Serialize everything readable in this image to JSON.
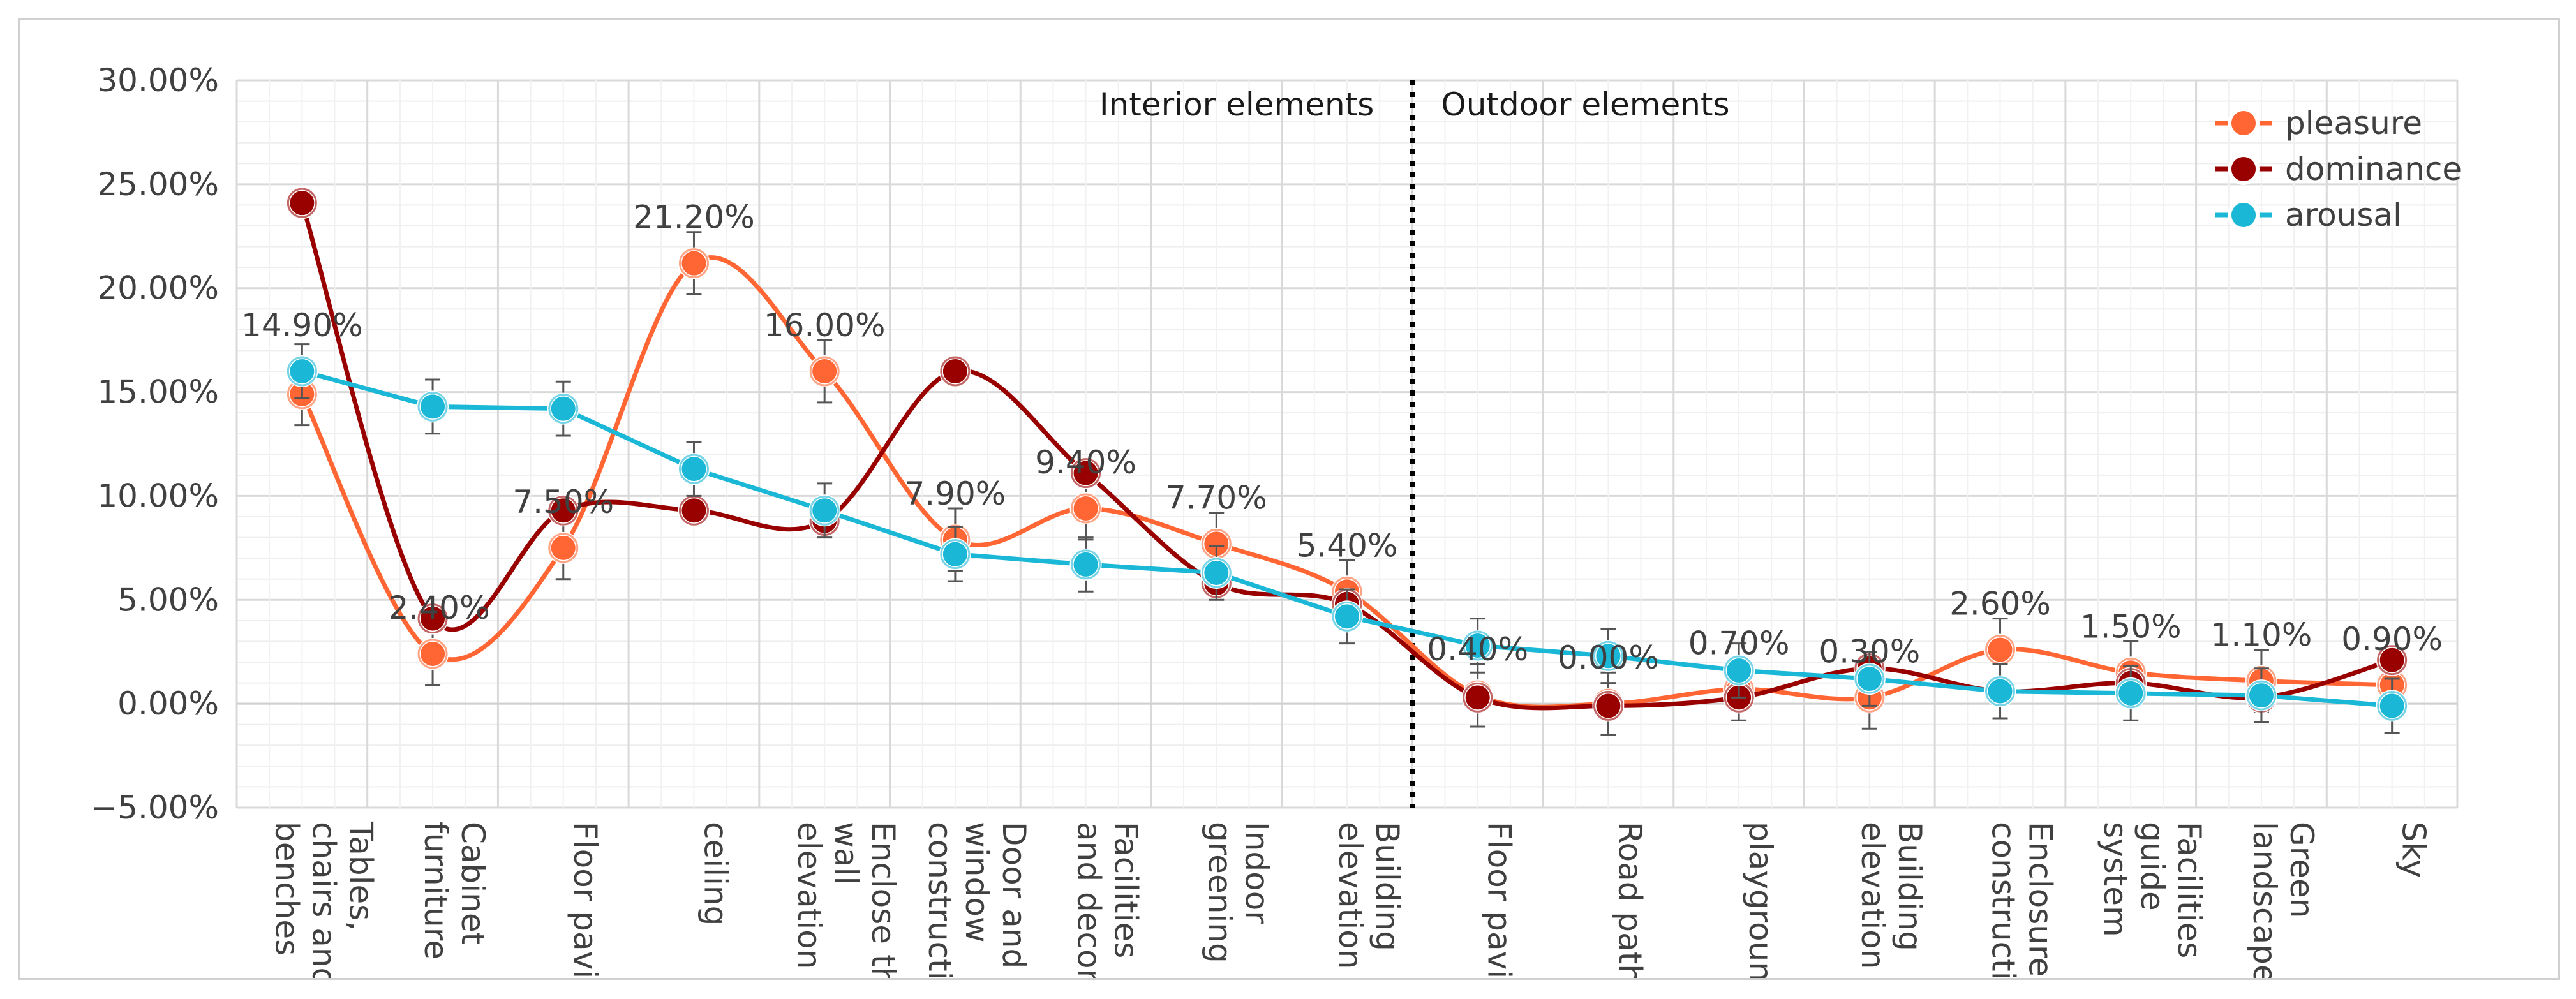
{
  "chart_data": {
    "type": "line",
    "title": "",
    "xlabel": "",
    "ylabel": "",
    "ylim": [
      -0.05,
      0.3
    ],
    "y_ticks": [
      "30.00%",
      "25.00%",
      "20.00%",
      "15.00%",
      "10.00%",
      "5.00%",
      "0.00%",
      "−5.00%"
    ],
    "y_tick_values": [
      0.3,
      0.25,
      0.2,
      0.15,
      0.1,
      0.05,
      0.0,
      -0.05
    ],
    "categories": [
      [
        "benches",
        "chairs and",
        "Tables,"
      ],
      [
        "furniture",
        "Cabinet"
      ],
      [
        "Floor paving"
      ],
      [
        "ceiling"
      ],
      [
        "elevation",
        "wall",
        "Enclose the"
      ],
      [
        "construction",
        "window",
        "Door and"
      ],
      [
        "and decor",
        "Facilities"
      ],
      [
        "greening",
        "Indoor"
      ],
      [
        "elevation",
        "Building"
      ],
      [
        "Floor paving"
      ],
      [
        "Road path"
      ],
      [
        "playground"
      ],
      [
        "elevation",
        "Building"
      ],
      [
        "construction",
        "Enclosure"
      ],
      [
        "system",
        "guide",
        "Facilities"
      ],
      [
        "landscape",
        "Green"
      ],
      [
        "Sky"
      ]
    ],
    "series": [
      {
        "name": "pleasure",
        "color": "#ff6633",
        "values": [
          0.149,
          0.024,
          0.075,
          0.212,
          0.16,
          0.079,
          0.094,
          0.077,
          0.054,
          0.004,
          0.0,
          0.007,
          0.003,
          0.026,
          0.015,
          0.011,
          0.009
        ],
        "errors": [
          0.015,
          0.015,
          0.015,
          0.015,
          0.015,
          0.015,
          0.015,
          0.015,
          0.015,
          0.015,
          0.015,
          0.015,
          0.015,
          0.015,
          0.015,
          0.015,
          0.015
        ]
      },
      {
        "name": "dominance",
        "color": "#990000",
        "values": [
          0.241,
          0.041,
          0.093,
          0.093,
          0.088,
          0.16,
          0.111,
          0.058,
          0.048,
          0.003,
          -0.001,
          0.003,
          0.017,
          0.006,
          0.01,
          0.003,
          0.021
        ],
        "errors": [
          0.0,
          0.0,
          0.0,
          0.0,
          0.0,
          0.0,
          0.0,
          0.0,
          0.0,
          0.0,
          0.0,
          0.0,
          0.0,
          0.0,
          0.0,
          0.0,
          0.0
        ]
      },
      {
        "name": "arousal",
        "color": "#1ab8d6",
        "values": [
          0.16,
          0.143,
          0.142,
          0.113,
          0.093,
          0.072,
          0.067,
          0.063,
          0.042,
          0.028,
          0.023,
          0.016,
          0.012,
          0.006,
          0.005,
          0.004,
          -0.001
        ],
        "errors": [
          0.013,
          0.013,
          0.013,
          0.013,
          0.013,
          0.013,
          0.013,
          0.013,
          0.013,
          0.013,
          0.013,
          0.013,
          0.013,
          0.013,
          0.013,
          0.013,
          0.013
        ]
      }
    ],
    "data_labels": [
      "14.90%",
      "2.40%",
      "7.50%",
      "21.20%",
      "16.00%",
      "7.90%",
      "9.40%",
      "7.70%",
      "5.40%",
      "0.40%",
      "0.00%",
      "0.70%",
      "0.30%",
      "2.60%",
      "1.50%",
      "1.10%",
      "0.90%"
    ],
    "annotations": {
      "interior": "Interior elements",
      "outdoor": "Outdoor elements"
    },
    "divider_after_category": 8,
    "legend_position": "top-right",
    "grid": true
  }
}
